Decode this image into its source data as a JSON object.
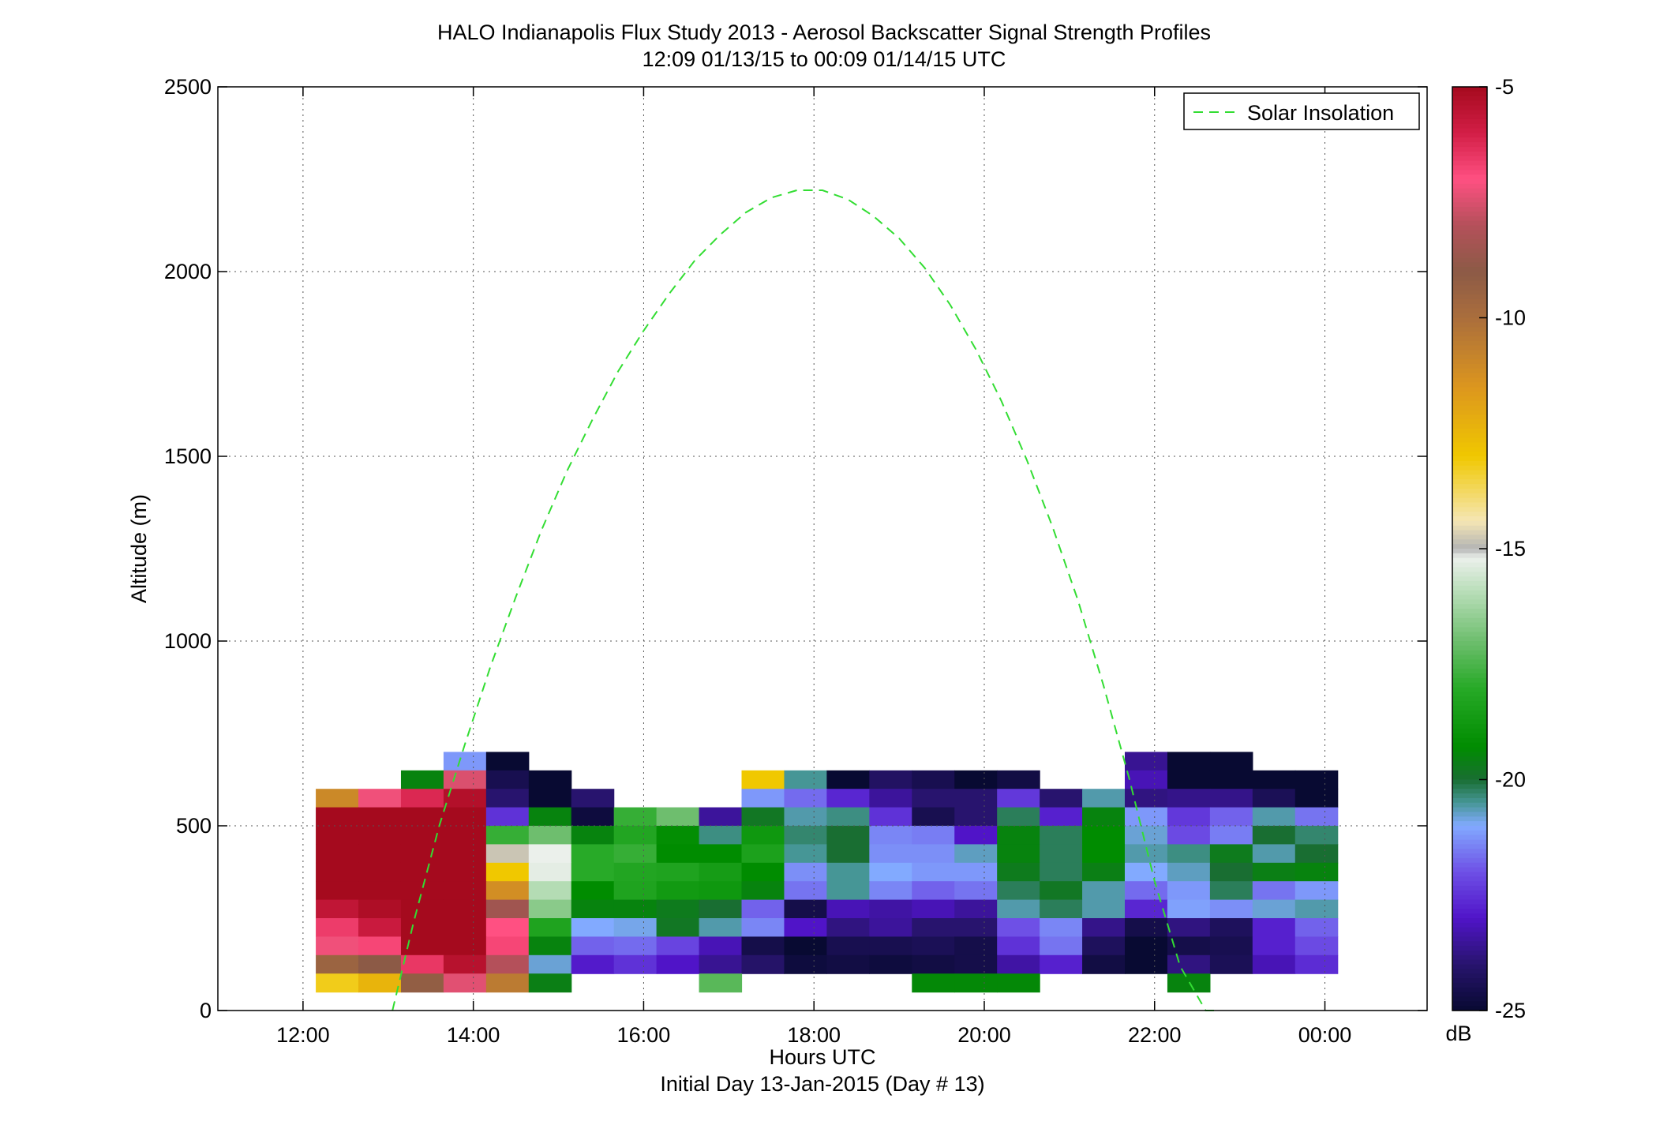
{
  "figure": {
    "title_line1": "HALO Indianapolis Flux Study 2013 - Aerosol Backscatter Signal Strength Profiles",
    "title_line2": "12:09 01/13/15 to 00:09 01/14/15  UTC",
    "xlabel": "Hours UTC",
    "xlabel2": "Initial Day 13-Jan-2015 (Day # 13)",
    "ylabel": "Altitude (m)",
    "colorbar_unit": "dB"
  },
  "chart_data": {
    "type": "heatmap",
    "title": "HALO Indianapolis Flux Study 2013 - Aerosol Backscatter Signal Strength Profiles",
    "subtitle": "12:09 01/13/15 to 00:09 01/14/15  UTC",
    "xlabel": "Hours UTC",
    "ylabel": "Altitude (m)",
    "xlim_hours": [
      11,
      25.2
    ],
    "ylim": [
      0,
      2500
    ],
    "x_ticks": [
      {
        "value": 12,
        "label": "12:00"
      },
      {
        "value": 14,
        "label": "14:00"
      },
      {
        "value": 16,
        "label": "16:00"
      },
      {
        "value": 18,
        "label": "18:00"
      },
      {
        "value": 20,
        "label": "20:00"
      },
      {
        "value": 22,
        "label": "22:00"
      },
      {
        "value": 24,
        "label": "00:00"
      }
    ],
    "y_ticks": [
      0,
      500,
      1000,
      1500,
      2000,
      2500
    ],
    "grid": true,
    "grid_style": "dotted",
    "colorbar": {
      "min": -25,
      "max": -5,
      "unit": "dB",
      "ticks": [
        -5,
        -10,
        -15,
        -20,
        -25
      ]
    },
    "heatmap": {
      "time_start_hours": 12.15,
      "time_step_hours": 0.5,
      "alt_start_m": 50,
      "alt_step_m": 50,
      "nodata": null,
      "rows_top_to_bottom": [
        [
          null,
          null,
          null,
          null,
          null,
          null,
          null,
          null,
          null,
          null,
          null,
          null,
          null,
          null,
          null,
          null,
          null,
          null,
          null,
          null,
          null,
          null,
          null,
          null
        ],
        [
          null,
          null,
          null,
          -21.2,
          -25,
          null,
          null,
          null,
          null,
          null,
          null,
          null,
          null,
          null,
          null,
          null,
          null,
          null,
          null,
          -23.6,
          -25,
          -25,
          null,
          null
        ],
        [
          null,
          null,
          -19.5,
          -7.5,
          -24.5,
          -25,
          null,
          null,
          null,
          null,
          -13,
          -20.5,
          -25,
          -24.2,
          -24.5,
          -25,
          -24.7,
          null,
          null,
          -23.2,
          -25,
          -25,
          -25,
          -25
        ],
        [
          -11,
          -7.2,
          -6.2,
          -5.3,
          -24,
          -25,
          -24,
          null,
          null,
          null,
          -21.2,
          -21.7,
          -22.7,
          -23.5,
          -24,
          -24,
          -22.4,
          -24,
          -20.6,
          -23.8,
          -23.7,
          -23.7,
          -24.4,
          -25
        ],
        [
          -5,
          -5,
          -5,
          -5,
          -22.5,
          -19.5,
          -24.8,
          -17.8,
          -17,
          -23.5,
          -19.8,
          -20.6,
          -20.4,
          -22.5,
          -24.5,
          -24,
          -20.2,
          -22.8,
          -19.5,
          -21.2,
          -22.4,
          -21.8,
          -20.6,
          -21.6
        ],
        [
          -5,
          -5,
          -5,
          -5,
          -17.8,
          -17,
          -19.5,
          -18.2,
          -19.2,
          -20.4,
          -18.8,
          -20.3,
          -20,
          -21.4,
          -21.5,
          -23,
          -19.5,
          -20.2,
          -19.3,
          -20.8,
          -22.1,
          -21.5,
          -20,
          -20.3
        ],
        [
          -5,
          -5,
          -5,
          -5,
          -14.8,
          -15.2,
          -18,
          -17.8,
          -19.3,
          -19.3,
          -18.4,
          -20.5,
          -20,
          -21.3,
          -21.3,
          -20.7,
          -19.5,
          -20.2,
          -19.3,
          -20.6,
          -20.4,
          -19.7,
          -20.6,
          -20
        ],
        [
          -5,
          -5,
          -5,
          -5,
          -13,
          -15.3,
          -18,
          -18.2,
          -18.3,
          -18.6,
          -19.3,
          -21.3,
          -20.5,
          -21,
          -21.2,
          -21.2,
          -19.7,
          -20.2,
          -19.6,
          -21,
          -20.7,
          -20,
          -19.6,
          -19.5
        ],
        [
          -5,
          -5,
          -5,
          -5,
          -11.2,
          -16,
          -19.3,
          -18.3,
          -18.7,
          -18.8,
          -19.5,
          -21.6,
          -20.5,
          -21.4,
          -21.8,
          -21.6,
          -20.2,
          -19.8,
          -20.6,
          -21.7,
          -21.2,
          -20.2,
          -21.6,
          -21.2
        ],
        [
          -5.6,
          -5.2,
          -5,
          -5,
          -8.5,
          -16.6,
          -19.5,
          -19.5,
          -19.7,
          -20,
          -21.8,
          -24.6,
          -23.2,
          -23.4,
          -23.2,
          -23.5,
          -20.6,
          -20.2,
          -20.6,
          -22.7,
          -21.1,
          -21.3,
          -20.8,
          -20.6
        ],
        [
          -6.6,
          -5.8,
          -5,
          -5,
          -7,
          -18.3,
          -21,
          -20.9,
          -19.8,
          -20.6,
          -21.4,
          -23,
          -23.8,
          -23.5,
          -24,
          -24,
          -22,
          -21.4,
          -23.7,
          -24.6,
          -23.8,
          -24.3,
          -22.8,
          -21.8
        ],
        [
          -7.2,
          -6.8,
          -5,
          -5,
          -6.8,
          -19.5,
          -21.8,
          -21.7,
          -22.2,
          -23.2,
          -24.6,
          -25,
          -24.5,
          -24.5,
          -24.4,
          -24.6,
          -22.5,
          -21.6,
          -24.3,
          -25,
          -24.6,
          -24.5,
          -22.8,
          -22.1
        ],
        [
          -9.5,
          -9,
          -6.5,
          -5.4,
          -8,
          -20.8,
          -22.9,
          -22.5,
          -23,
          -23.6,
          -24.1,
          -24.8,
          -24.7,
          -24.8,
          -24.7,
          -24.6,
          -23.4,
          -22.8,
          -24.7,
          -25,
          -23.8,
          -24.4,
          -23.2,
          -22.6
        ],
        [
          -13.2,
          -12.4,
          -9.2,
          -7.4,
          -10.5,
          -19.6,
          null,
          null,
          null,
          -17.3,
          null,
          null,
          null,
          null,
          -19.4,
          -19.4,
          -19.4,
          null,
          null,
          null,
          -19.5,
          null,
          null,
          null
        ]
      ]
    },
    "series": [
      {
        "name": "Solar Insolation",
        "style": "dashed",
        "color": "#33dd33",
        "x_hours": [
          13.05,
          13.3,
          13.6,
          13.9,
          14.2,
          14.5,
          14.8,
          15.1,
          15.4,
          15.7,
          16.0,
          16.3,
          16.6,
          16.9,
          17.2,
          17.5,
          17.8,
          18.1,
          18.4,
          18.7,
          19.0,
          19.3,
          19.6,
          19.9,
          20.2,
          20.5,
          20.8,
          21.1,
          21.4,
          21.7,
          22.0,
          22.3,
          22.6,
          22.75
        ],
        "y": [
          0,
          240,
          500,
          720,
          930,
          1120,
          1300,
          1460,
          1600,
          1730,
          1840,
          1940,
          2030,
          2100,
          2160,
          2200,
          2220,
          2220,
          2195,
          2150,
          2090,
          2010,
          1910,
          1790,
          1650,
          1490,
          1310,
          1110,
          880,
          630,
          350,
          120,
          0,
          0
        ]
      }
    ],
    "legend": {
      "position": "top-right",
      "entries": [
        "Solar Insolation"
      ]
    }
  }
}
